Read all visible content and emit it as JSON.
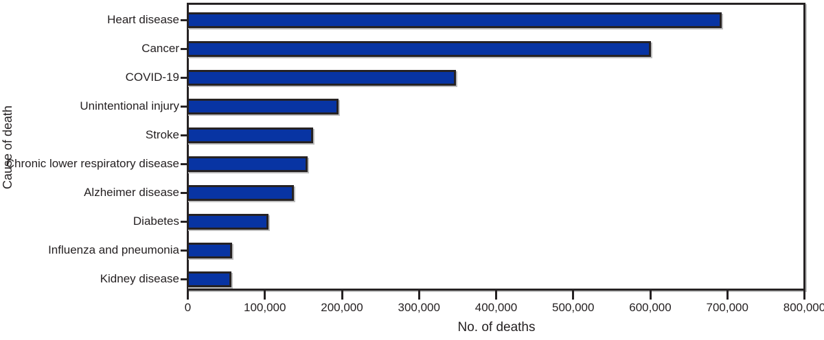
{
  "chart_data": {
    "type": "bar",
    "orientation": "horizontal",
    "title": "",
    "xlabel": "No. of deaths",
    "ylabel": "Cause of death",
    "categories": [
      "Heart disease",
      "Cancer",
      "COVID-19",
      "Unintentional injury",
      "Stroke",
      "Chronic lower respiratory disease",
      "Alzheimer disease",
      "Diabetes",
      "Influenza and pneumonia",
      "Kidney disease"
    ],
    "values": [
      690882,
      598932,
      345323,
      192176,
      159050,
      151637,
      134242,
      101106,
      53544,
      52547
    ],
    "xlim": [
      0,
      800000
    ],
    "xticks": [
      0,
      100000,
      200000,
      300000,
      400000,
      500000,
      600000,
      700000,
      800000
    ],
    "xtick_labels": [
      "0",
      "100,000",
      "200,000",
      "300,000",
      "400,000",
      "500,000",
      "600,000",
      "700,000",
      "800,000"
    ],
    "grid": false,
    "legend": false,
    "bar_color": "#0834a3",
    "frame_color": "#262223",
    "shadow_color": "#bfbfbf",
    "text_color": "#231f20"
  }
}
